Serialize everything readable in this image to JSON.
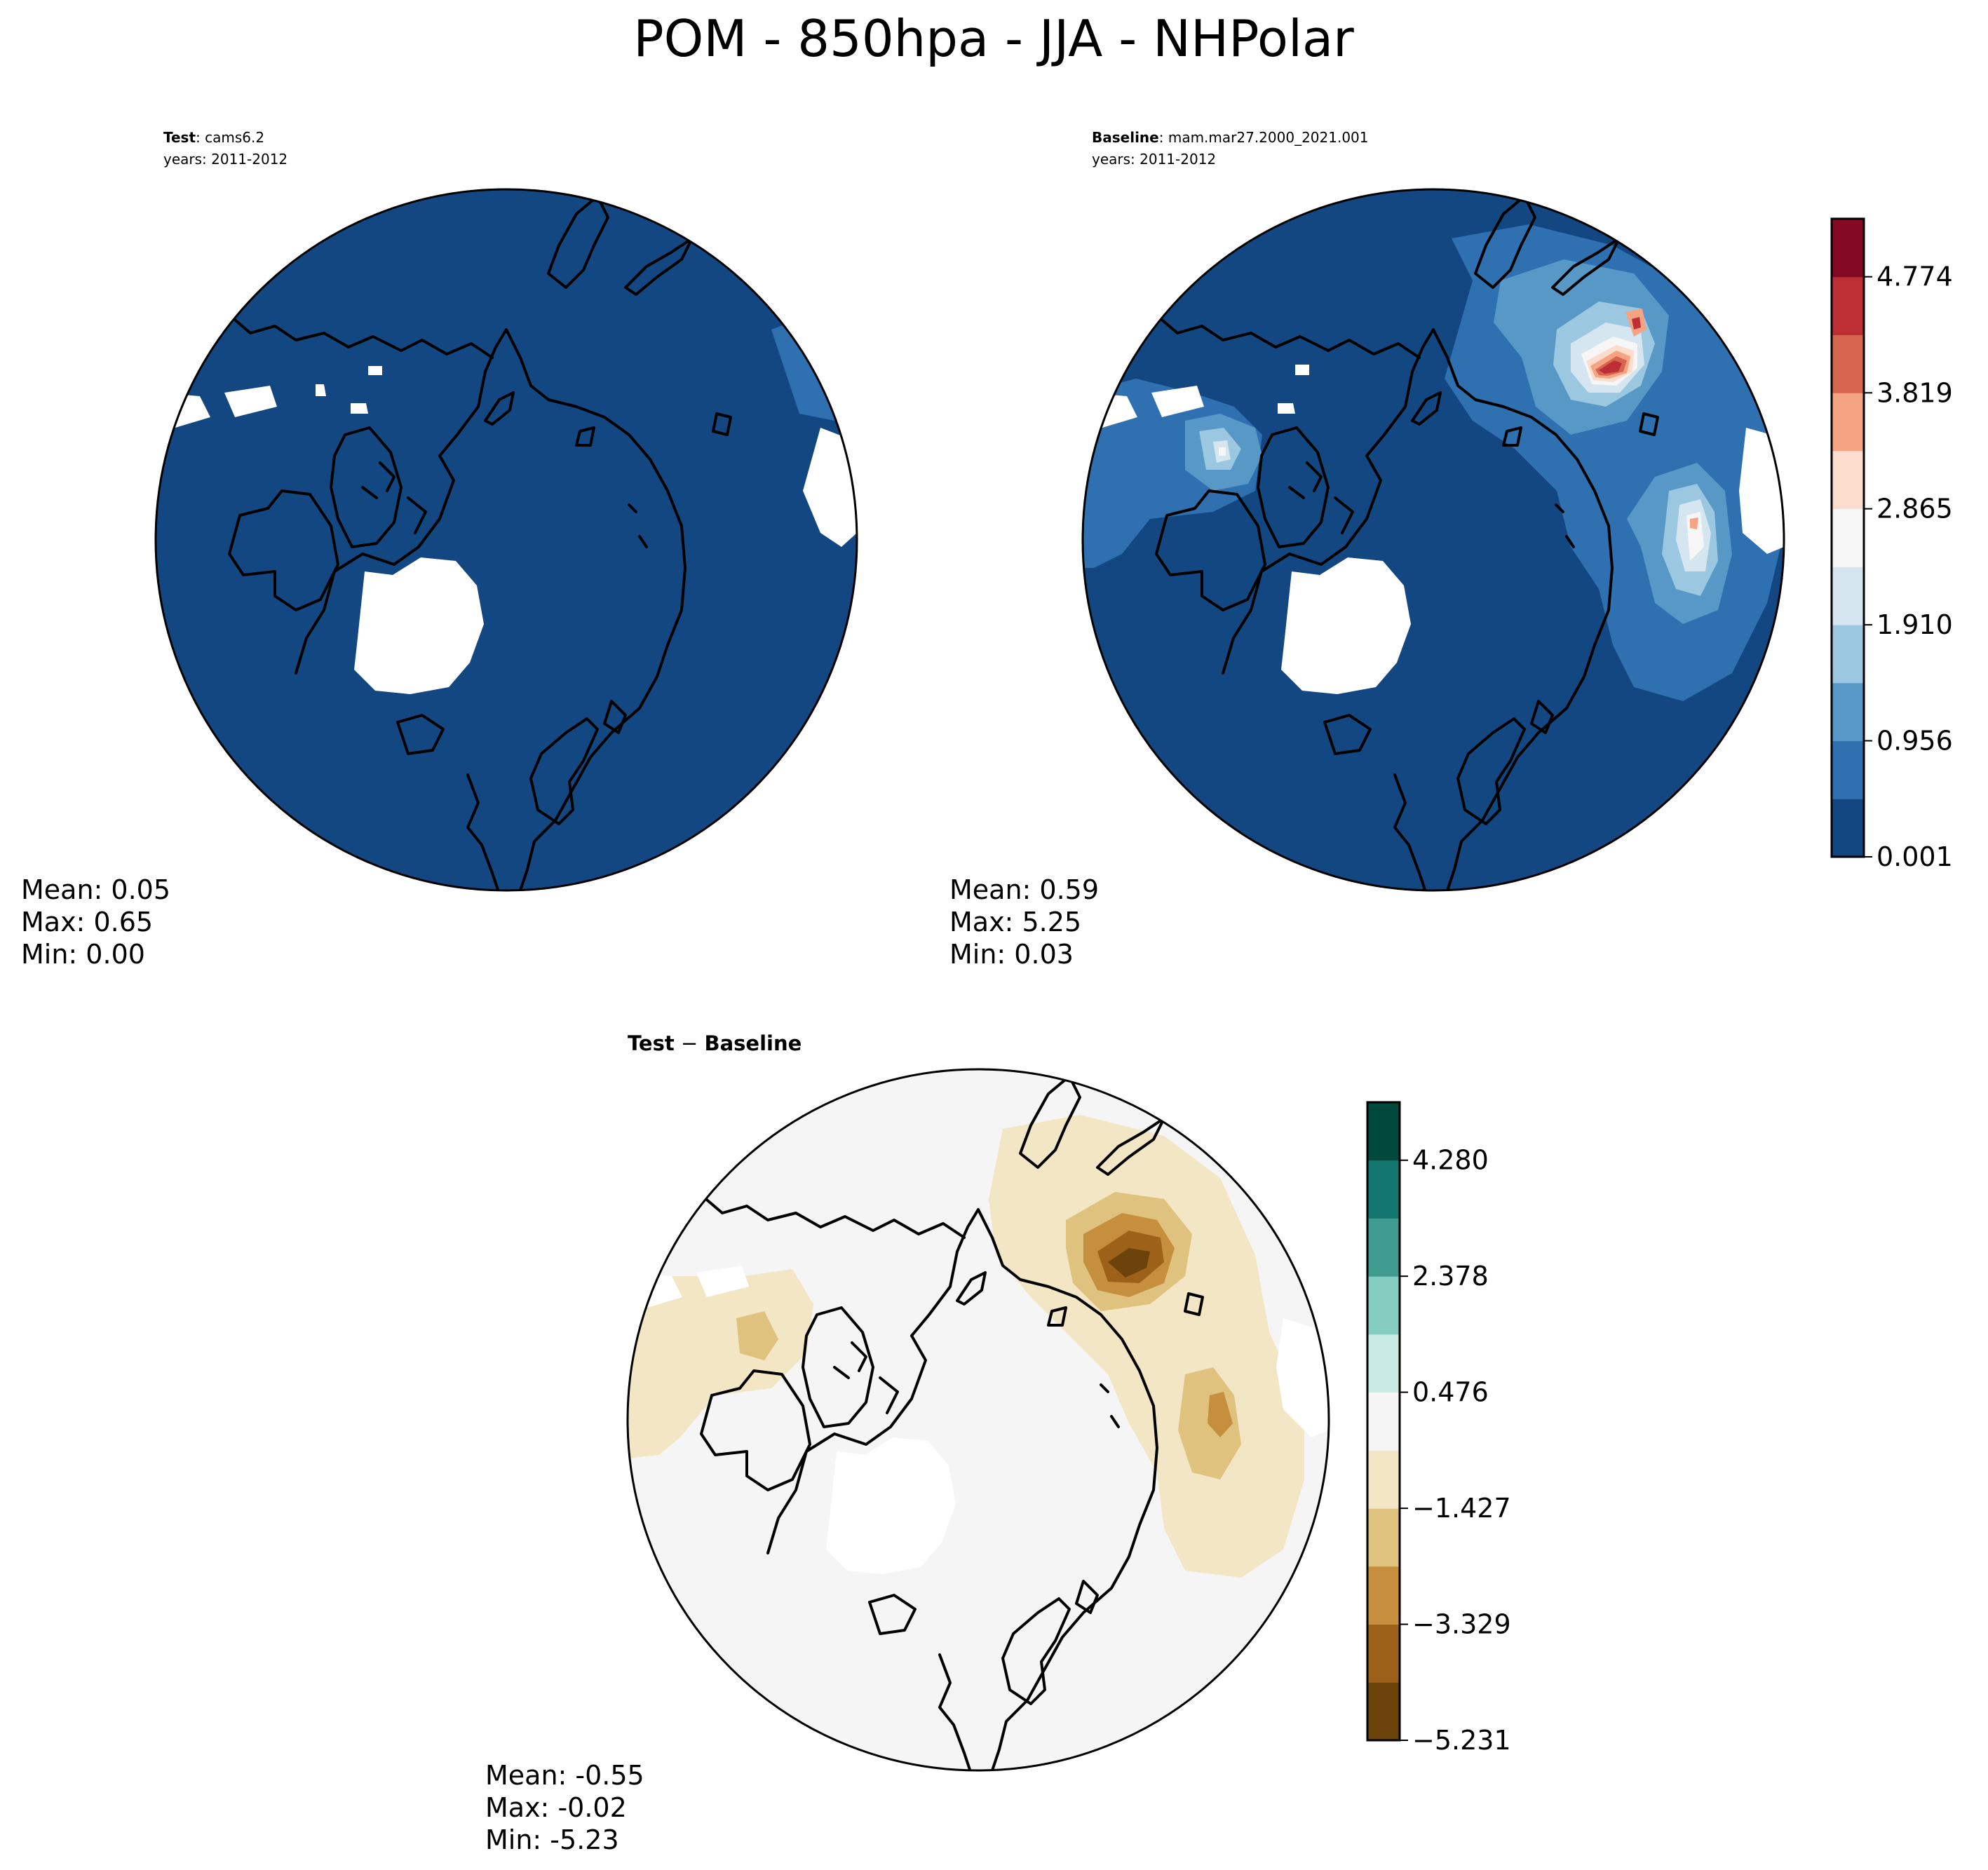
{
  "figure": {
    "title": "POM - 850hpa - JJA - NHPolar"
  },
  "panels": {
    "test": {
      "label": "Test",
      "name": ": cams6.2",
      "years": "years: 2011-2012",
      "stats": {
        "mean": "Mean:  0.05",
        "max": "Max:  0.65",
        "min": "Min:  0.00"
      }
    },
    "baseline": {
      "label": "Baseline",
      "name": ": mam.mar27.2000_2021.001",
      "years": "years: 2011-2012",
      "stats": {
        "mean": "Mean:  0.59",
        "max": "Max:  5.25",
        "min": "Min:  0.03"
      }
    },
    "diff": {
      "title_a": "Test",
      "title_op": " − ",
      "title_b": "Baseline",
      "stats": {
        "mean": "Mean: -0.55",
        "max": "Max: -0.02",
        "min": "Min: -5.23"
      }
    }
  },
  "chart_data": [
    {
      "type": "heatmap",
      "panel": "test",
      "projection": "north polar stereographic",
      "stats": {
        "mean": 0.05,
        "max": 0.65,
        "min": 0.0
      },
      "uses_colorbar": "main"
    },
    {
      "type": "heatmap",
      "panel": "baseline",
      "projection": "north polar stereographic",
      "stats": {
        "mean": 0.59,
        "max": 5.25,
        "min": 0.03
      },
      "uses_colorbar": "main"
    },
    {
      "type": "heatmap",
      "panel": "diff",
      "projection": "north polar stereographic",
      "stats": {
        "mean": -0.55,
        "max": -0.02,
        "min": -5.23
      },
      "uses_colorbar": "diff"
    }
  ],
  "colorbars": {
    "main": {
      "levels": [
        0.001,
        0.4783,
        0.956,
        1.433,
        1.91,
        2.3875,
        2.865,
        3.342,
        3.819,
        4.2965,
        4.774,
        5.2513
      ],
      "colors": [
        "#124782",
        "#2f70b0",
        "#5798c7",
        "#9bc7e0",
        "#d5e6f1",
        "#f6f6f6",
        "#fbdccd",
        "#f4a482",
        "#d6654f",
        "#be2e35",
        "#840a23"
      ],
      "tick_values": [
        0.001,
        0.956,
        1.91,
        2.865,
        3.819,
        4.774
      ],
      "tick_labels": [
        "0.001",
        "0.956",
        "1.910",
        "2.865",
        "3.819",
        "4.774"
      ]
    },
    "diff": {
      "levels": [
        -5.231,
        -4.28,
        -3.329,
        -2.378,
        -1.427,
        -0.476,
        0.476,
        1.427,
        2.378,
        3.329,
        4.28,
        5.231
      ],
      "colors": [
        "#6c420b",
        "#9d6119",
        "#c58f3e",
        "#dfc27d",
        "#f3e6c4",
        "#f4f5f4",
        "#c9ebe5",
        "#85cdc0",
        "#3f9a8f",
        "#14776f",
        "#02493d"
      ],
      "tick_values": [
        -5.231,
        -3.329,
        -1.427,
        0.476,
        2.378,
        4.28
      ],
      "tick_labels": [
        "−5.231",
        "−3.329",
        "−1.427",
        "0.476",
        "2.378",
        "4.280"
      ]
    }
  }
}
